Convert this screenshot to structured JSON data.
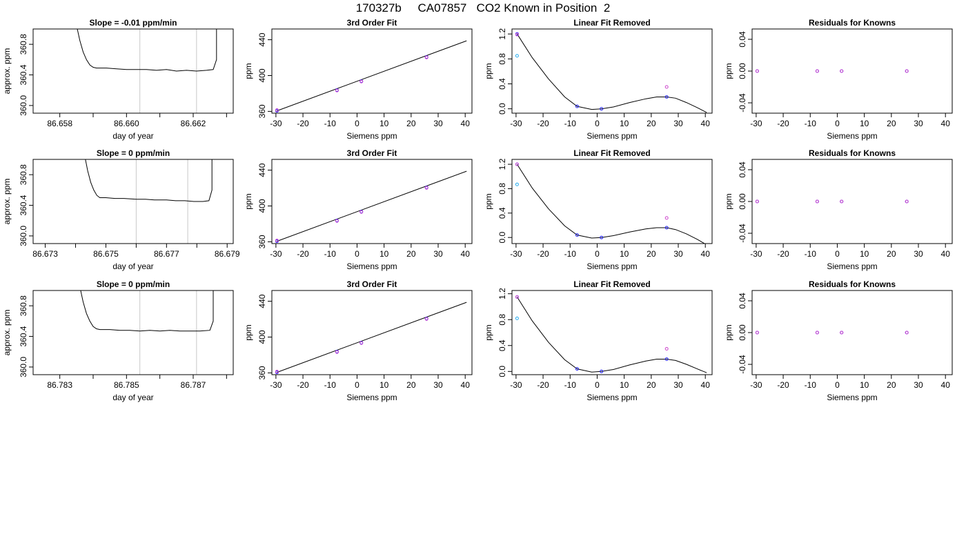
{
  "page": {
    "title": "170327b     CA07857   CO2 Known in Position  2"
  },
  "chart_data": [
    {
      "type": "line",
      "row": 1,
      "title": "Slope =  -0.01  ppm/min",
      "xlabel": "day of year",
      "ylabel": "approx. ppm",
      "xlim": [
        86.6572,
        86.6632
      ],
      "ylim": [
        359.9,
        361.0
      ],
      "xticks": [
        86.658,
        86.66,
        86.662
      ],
      "xtick_labels": [
        "86.658",
        "86.660",
        "86.662"
      ],
      "xticks_minor": [
        86.659,
        86.661,
        86.663
      ],
      "yticks": [
        360.0,
        360.4,
        360.8
      ],
      "ytick_labels": [
        "360.0",
        "360.4",
        "360.8"
      ],
      "vlines": [
        86.6604,
        86.6621
      ],
      "series": [
        {
          "x": [
            86.6585,
            86.6586,
            86.6587,
            86.6588,
            86.6589,
            86.659,
            86.6591,
            86.6594,
            86.6597,
            86.66,
            86.6603,
            86.6606,
            86.6609,
            86.6612,
            86.6615,
            86.6618,
            86.6621,
            86.6624,
            86.6626,
            86.6627,
            86.6627
          ],
          "y": [
            361.05,
            360.85,
            360.7,
            360.6,
            360.53,
            360.5,
            360.49,
            360.49,
            360.48,
            360.47,
            360.47,
            360.47,
            360.46,
            360.47,
            360.45,
            360.46,
            360.45,
            360.46,
            360.47,
            360.6,
            361.05
          ]
        }
      ]
    },
    {
      "type": "scatter",
      "row": 1,
      "title": "3rd Order Fit",
      "xlabel": "Siemens ppm",
      "ylabel": "ppm",
      "xlim": [
        -31.5,
        42.5
      ],
      "ylim": [
        358,
        452
      ],
      "xticks": [
        -30,
        -20,
        -10,
        0,
        10,
        20,
        30,
        40
      ],
      "xtick_labels": [
        "-30",
        "-20",
        "-10",
        "0",
        "10",
        "20",
        "30",
        "40"
      ],
      "yticks": [
        360,
        400,
        440
      ],
      "ytick_labels": [
        "360",
        "400",
        "440"
      ],
      "series": [
        {
          "x": [
            -29.6,
            -7.4,
            1.6,
            25.7
          ],
          "y": [
            360.6,
            383.7,
            393.7,
            420.6
          ],
          "color": "#2222ff"
        },
        {
          "x": [
            -29.6,
            -7.4,
            1.6,
            25.7
          ],
          "y": [
            361.5,
            383.3,
            393.3,
            420.2
          ],
          "color": "#cc44cc"
        }
      ],
      "fit_line": {
        "x": [
          -29.6,
          40.5
        ],
        "y": [
          360.6,
          438.8
        ]
      }
    },
    {
      "type": "scatter",
      "row": 1,
      "title": "Linear Fit Removed",
      "xlabel": "Siemens ppm",
      "ylabel": "ppm",
      "xlim": [
        -31.5,
        42.5
      ],
      "ylim": [
        -0.07,
        1.28
      ],
      "xticks": [
        -30,
        -20,
        -10,
        0,
        10,
        20,
        30,
        40
      ],
      "xtick_labels": [
        "-30",
        "-20",
        "-10",
        "0",
        "10",
        "20",
        "30",
        "40"
      ],
      "yticks": [
        0.0,
        0.4,
        0.8,
        1.2
      ],
      "ytick_labels": [
        "0.0",
        "0.4",
        "0.8",
        "1.2"
      ],
      "series": [
        {
          "x": [
            -29.6,
            -7.4,
            1.6,
            25.7
          ],
          "y": [
            1.2,
            0.04,
            0.0,
            0.19
          ],
          "color": "#2222ff"
        },
        {
          "x": [
            -29.6,
            25.7
          ],
          "y": [
            1.19,
            0.35
          ],
          "color": "#cc44cc"
        },
        {
          "x": [
            -29.6
          ],
          "y": [
            0.85
          ],
          "color": "#22aaee"
        }
      ],
      "curve": {
        "x": [
          -29.6,
          -24,
          -18,
          -12,
          -7.4,
          -2,
          1.6,
          6,
          12,
          18,
          22,
          25.7,
          29,
          33,
          37,
          40.5
        ],
        "y": [
          1.2,
          0.82,
          0.48,
          0.19,
          0.04,
          -0.01,
          0.0,
          0.03,
          0.1,
          0.16,
          0.19,
          0.19,
          0.17,
          0.1,
          0.02,
          -0.06
        ]
      }
    },
    {
      "type": "scatter",
      "row": 1,
      "title": "Residuals for Knowns",
      "xlabel": "Siemens ppm",
      "ylabel": "ppm",
      "xlim": [
        -31.5,
        42.5
      ],
      "ylim": [
        -0.053,
        0.053
      ],
      "xticks": [
        -30,
        -20,
        -10,
        0,
        10,
        20,
        30,
        40
      ],
      "xtick_labels": [
        "-30",
        "-20",
        "-10",
        "0",
        "10",
        "20",
        "30",
        "40"
      ],
      "yticks": [
        -0.04,
        0.0,
        0.04
      ],
      "ytick_labels": [
        "-0.04",
        "0.00",
        "0.04"
      ],
      "series": [
        {
          "x": [
            -29.6,
            -7.4,
            1.6,
            25.7
          ],
          "y": [
            0,
            0,
            0,
            0
          ],
          "color": "#2222ff"
        },
        {
          "x": [
            -29.6,
            -7.4,
            1.6,
            25.7
          ],
          "y": [
            0,
            0,
            0,
            0
          ],
          "color": "#cc44cc"
        }
      ]
    },
    {
      "type": "line",
      "row": 2,
      "title": "Slope =  0  ppm/min",
      "xlabel": "day of year",
      "ylabel": "approx. ppm",
      "xlim": [
        86.6726,
        86.6792
      ],
      "ylim": [
        359.9,
        361.0
      ],
      "xticks": [
        86.673,
        86.675,
        86.677,
        86.679
      ],
      "xtick_labels": [
        "86.673",
        "86.675",
        "86.677",
        "86.679"
      ],
      "xticks_minor": [
        86.674,
        86.676,
        86.678
      ],
      "yticks": [
        360.0,
        360.4,
        360.8
      ],
      "ytick_labels": [
        "360.0",
        "360.4",
        "360.8"
      ],
      "vlines": [
        86.676,
        86.6777
      ],
      "series": [
        {
          "x": [
            86.6743,
            86.6744,
            86.6745,
            86.6746,
            86.6747,
            86.6748,
            86.675,
            86.6753,
            86.6756,
            86.676,
            86.6763,
            86.6766,
            86.677,
            86.6773,
            86.6776,
            86.6779,
            86.6782,
            86.6784,
            86.6785,
            86.6785
          ],
          "y": [
            361.05,
            360.85,
            360.7,
            360.6,
            360.53,
            360.5,
            360.5,
            360.49,
            360.49,
            360.48,
            360.48,
            360.47,
            360.47,
            360.46,
            360.46,
            360.45,
            360.45,
            360.46,
            360.6,
            361.05
          ]
        }
      ]
    },
    {
      "type": "scatter",
      "row": 2,
      "title": "3rd Order Fit",
      "xlabel": "Siemens ppm",
      "ylabel": "ppm",
      "xlim": [
        -31.5,
        42.5
      ],
      "ylim": [
        358,
        452
      ],
      "xticks": [
        -30,
        -20,
        -10,
        0,
        10,
        20,
        30,
        40
      ],
      "xtick_labels": [
        "-30",
        "-20",
        "-10",
        "0",
        "10",
        "20",
        "30",
        "40"
      ],
      "yticks": [
        360,
        400,
        440
      ],
      "ytick_labels": [
        "360",
        "400",
        "440"
      ],
      "series": [
        {
          "x": [
            -29.6,
            -7.4,
            1.6,
            25.7
          ],
          "y": [
            360.6,
            383.7,
            393.7,
            420.6
          ],
          "color": "#2222ff"
        },
        {
          "x": [
            -29.6,
            -7.4,
            1.6,
            25.7
          ],
          "y": [
            361.5,
            383.3,
            393.3,
            420.2
          ],
          "color": "#cc44cc"
        }
      ],
      "fit_line": {
        "x": [
          -29.6,
          40.5
        ],
        "y": [
          360.6,
          438.8
        ]
      }
    },
    {
      "type": "scatter",
      "row": 2,
      "title": "Linear Fit Removed",
      "xlabel": "Siemens ppm",
      "ylabel": "ppm",
      "xlim": [
        -31.5,
        42.5
      ],
      "ylim": [
        -0.1,
        1.28
      ],
      "xticks": [
        -30,
        -20,
        -10,
        0,
        10,
        20,
        30,
        40
      ],
      "xtick_labels": [
        "-30",
        "-20",
        "-10",
        "0",
        "10",
        "20",
        "30",
        "40"
      ],
      "yticks": [
        0.0,
        0.4,
        0.8,
        1.2
      ],
      "ytick_labels": [
        "0.0",
        "0.4",
        "0.8",
        "1.2"
      ],
      "series": [
        {
          "x": [
            -29.6,
            -7.4,
            1.6,
            25.7
          ],
          "y": [
            1.2,
            0.04,
            0.0,
            0.16
          ],
          "color": "#2222ff"
        },
        {
          "x": [
            -29.6,
            25.7
          ],
          "y": [
            1.2,
            0.32
          ],
          "color": "#cc44cc"
        },
        {
          "x": [
            -29.6
          ],
          "y": [
            0.87
          ],
          "color": "#22aaee"
        }
      ],
      "curve": {
        "x": [
          -29.6,
          -24,
          -18,
          -12,
          -7.4,
          -2,
          1.6,
          6,
          12,
          18,
          22,
          25.7,
          29,
          33,
          37,
          40.5
        ],
        "y": [
          1.2,
          0.81,
          0.47,
          0.19,
          0.04,
          -0.01,
          0.0,
          0.03,
          0.09,
          0.14,
          0.16,
          0.16,
          0.13,
          0.06,
          -0.03,
          -0.12
        ]
      }
    },
    {
      "type": "scatter",
      "row": 2,
      "title": "Residuals for Knowns",
      "xlabel": "Siemens ppm",
      "ylabel": "ppm",
      "xlim": [
        -31.5,
        42.5
      ],
      "ylim": [
        -0.053,
        0.053
      ],
      "xticks": [
        -30,
        -20,
        -10,
        0,
        10,
        20,
        30,
        40
      ],
      "xtick_labels": [
        "-30",
        "-20",
        "-10",
        "0",
        "10",
        "20",
        "30",
        "40"
      ],
      "yticks": [
        -0.04,
        0.0,
        0.04
      ],
      "ytick_labels": [
        "-0.04",
        "0.00",
        "0.04"
      ],
      "series": [
        {
          "x": [
            -29.6,
            -7.4,
            1.6,
            25.7
          ],
          "y": [
            0,
            0,
            0,
            0
          ],
          "color": "#2222ff"
        },
        {
          "x": [
            -29.6,
            -7.4,
            1.6,
            25.7
          ],
          "y": [
            0,
            0,
            0,
            0
          ],
          "color": "#cc44cc"
        }
      ]
    },
    {
      "type": "line",
      "row": 3,
      "title": "Slope =  0  ppm/min",
      "xlabel": "day of year",
      "ylabel": "approx. ppm",
      "xlim": [
        86.7822,
        86.7882
      ],
      "ylim": [
        359.9,
        361.0
      ],
      "xticks": [
        86.783,
        86.785,
        86.787
      ],
      "xtick_labels": [
        "86.783",
        "86.785",
        "86.787"
      ],
      "xticks_minor": [
        86.784,
        86.786,
        86.788
      ],
      "yticks": [
        360.0,
        360.4,
        360.8
      ],
      "ytick_labels": [
        "360.0",
        "360.4",
        "360.8"
      ],
      "vlines": [
        86.7854,
        86.7871
      ],
      "series": [
        {
          "x": [
            86.7836,
            86.7837,
            86.7838,
            86.7839,
            86.784,
            86.7841,
            86.7842,
            86.7845,
            86.7848,
            86.7851,
            86.7854,
            86.7857,
            86.786,
            86.7863,
            86.7866,
            86.7869,
            86.7872,
            86.7875,
            86.7876,
            86.7876
          ],
          "y": [
            361.05,
            360.85,
            360.7,
            360.6,
            360.53,
            360.5,
            360.49,
            360.49,
            360.48,
            360.48,
            360.47,
            360.48,
            360.47,
            360.48,
            360.47,
            360.47,
            360.47,
            360.48,
            360.6,
            361.05
          ]
        }
      ]
    },
    {
      "type": "scatter",
      "row": 3,
      "title": "3rd Order Fit",
      "xlabel": "Siemens ppm",
      "ylabel": "ppm",
      "xlim": [
        -31.5,
        42.5
      ],
      "ylim": [
        358,
        452
      ],
      "xticks": [
        -30,
        -20,
        -10,
        0,
        10,
        20,
        30,
        40
      ],
      "xtick_labels": [
        "-30",
        "-20",
        "-10",
        "0",
        "10",
        "20",
        "30",
        "40"
      ],
      "yticks": [
        360,
        400,
        440
      ],
      "ytick_labels": [
        "360",
        "400",
        "440"
      ],
      "series": [
        {
          "x": [
            -29.6,
            -7.4,
            1.6,
            25.7
          ],
          "y": [
            360.6,
            383.7,
            393.7,
            420.6
          ],
          "color": "#2222ff"
        },
        {
          "x": [
            -29.6,
            -7.4,
            1.6,
            25.7
          ],
          "y": [
            361.5,
            383.3,
            393.3,
            420.2
          ],
          "color": "#cc44cc"
        }
      ],
      "fit_line": {
        "x": [
          -29.6,
          40.5
        ],
        "y": [
          360.6,
          438.8
        ]
      }
    },
    {
      "type": "scatter",
      "row": 3,
      "title": "Linear Fit Removed",
      "xlabel": "Siemens ppm",
      "ylabel": "ppm",
      "xlim": [
        -31.5,
        42.5
      ],
      "ylim": [
        -0.05,
        1.25
      ],
      "xticks": [
        -30,
        -20,
        -10,
        0,
        10,
        20,
        30,
        40
      ],
      "xtick_labels": [
        "-30",
        "-20",
        "-10",
        "0",
        "10",
        "20",
        "30",
        "40"
      ],
      "yticks": [
        0.0,
        0.4,
        0.8,
        1.2
      ],
      "ytick_labels": [
        "0.0",
        "0.4",
        "0.8",
        "1.2"
      ],
      "series": [
        {
          "x": [
            -29.6,
            -7.4,
            1.6,
            25.7
          ],
          "y": [
            1.15,
            0.04,
            0.0,
            0.19
          ],
          "color": "#2222ff"
        },
        {
          "x": [
            -29.6,
            25.7
          ],
          "y": [
            1.15,
            0.35
          ],
          "color": "#cc44cc"
        },
        {
          "x": [
            -29.6
          ],
          "y": [
            0.82
          ],
          "color": "#22aaee"
        }
      ],
      "curve": {
        "x": [
          -29.6,
          -24,
          -18,
          -12,
          -7.4,
          -2,
          1.6,
          6,
          12,
          18,
          22,
          25.7,
          29,
          33,
          37,
          40.5
        ],
        "y": [
          1.15,
          0.78,
          0.45,
          0.18,
          0.04,
          -0.01,
          0.0,
          0.03,
          0.1,
          0.16,
          0.19,
          0.19,
          0.17,
          0.11,
          0.04,
          -0.02
        ]
      }
    },
    {
      "type": "scatter",
      "row": 3,
      "title": "Residuals for Knowns",
      "xlabel": "Siemens ppm",
      "ylabel": "ppm",
      "xlim": [
        -31.5,
        42.5
      ],
      "ylim": [
        -0.053,
        0.053
      ],
      "xticks": [
        -30,
        -20,
        -10,
        0,
        10,
        20,
        30,
        40
      ],
      "xtick_labels": [
        "-30",
        "-20",
        "-10",
        "0",
        "10",
        "20",
        "30",
        "40"
      ],
      "yticks": [
        -0.04,
        0.0,
        0.04
      ],
      "ytick_labels": [
        "-0.04",
        "0.00",
        "0.04"
      ],
      "series": [
        {
          "x": [
            -29.6,
            -7.4,
            1.6,
            25.7
          ],
          "y": [
            0,
            0,
            0,
            0
          ],
          "color": "#2222ff"
        },
        {
          "x": [
            -29.6,
            -7.4,
            1.6,
            25.7
          ],
          "y": [
            0,
            0,
            0,
            0
          ],
          "color": "#cc44cc"
        }
      ]
    }
  ]
}
